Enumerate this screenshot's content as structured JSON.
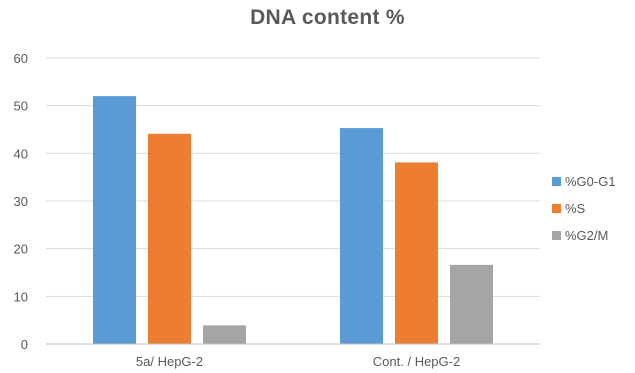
{
  "chart_data": {
    "type": "bar",
    "title": "DNA content %",
    "xlabel": "",
    "ylabel": "",
    "categories": [
      "5a/ HepG-2",
      "Cont. / HepG-2"
    ],
    "series": [
      {
        "name": "%G0-G1",
        "values": [
          52,
          45.3
        ],
        "color": "#5b9bd5"
      },
      {
        "name": "%S",
        "values": [
          44.1,
          38.1
        ],
        "color": "#ed7d31"
      },
      {
        "name": "%G2/M",
        "values": [
          3.9,
          16.6
        ],
        "color": "#a5a5a5"
      }
    ],
    "ylim": [
      0,
      60
    ],
    "yticks": [
      0,
      10,
      20,
      30,
      40,
      50,
      60
    ],
    "grid": true,
    "legend_position": "right",
    "colors": {
      "gridline": "#d9d9d9",
      "axis": "#bfbfbf",
      "tick_text": "#595959",
      "title_text": "#595959"
    }
  }
}
